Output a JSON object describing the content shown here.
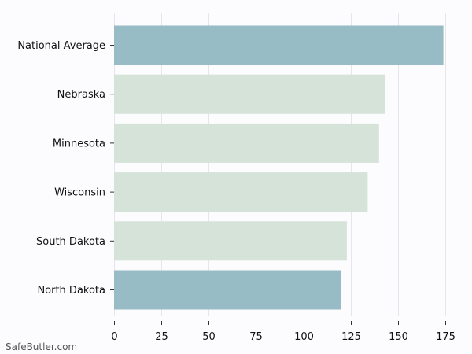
{
  "watermark": "SafeButler.com",
  "colors": {
    "highlight": "#98bcc5",
    "default": "#d5e3d9",
    "background": "#fcfcfe"
  },
  "chart_data": {
    "type": "bar",
    "orientation": "horizontal",
    "categories": [
      "National Average",
      "Nebraska",
      "Minnesota",
      "Wisconsin",
      "South Dakota",
      "North Dakota"
    ],
    "values": [
      174,
      143,
      140,
      134,
      123,
      120
    ],
    "highlighted": [
      true,
      false,
      false,
      false,
      false,
      true
    ],
    "xlim": [
      0,
      175
    ],
    "xticks": [
      0,
      25,
      50,
      75,
      100,
      125,
      150,
      175
    ],
    "grid": "vertical",
    "legend": "none"
  }
}
